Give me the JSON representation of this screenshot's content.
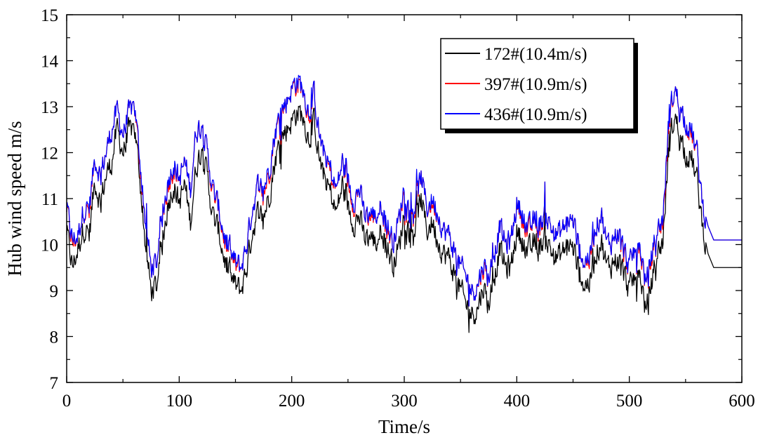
{
  "chart_data": {
    "type": "line",
    "title": "",
    "xlabel": "Time/s",
    "ylabel": "Hub wind speed m/s",
    "xlim": [
      0,
      600
    ],
    "ylim": [
      7,
      15
    ],
    "xticks": [
      0,
      100,
      200,
      300,
      400,
      500,
      600
    ],
    "yticks": [
      7,
      8,
      9,
      10,
      11,
      12,
      13,
      14,
      15
    ],
    "grid": false,
    "legend_position": "top-right",
    "sample_interval_s": 5,
    "noise_amplitude_ms": 0.45,
    "series": [
      {
        "name": "172#(10.4m/s)",
        "color": "#000000",
        "values": [
          10.3,
          9.5,
          9.9,
          10.4,
          10.2,
          11.4,
          10.9,
          11.5,
          11.8,
          12.5,
          12.0,
          12.4,
          12.6,
          11.5,
          10.0,
          9.0,
          9.1,
          10.0,
          10.9,
          11.3,
          10.9,
          11.3,
          10.5,
          11.7,
          12.1,
          11.5,
          10.6,
          10.3,
          9.7,
          9.3,
          9.1,
          9.0,
          9.5,
          10.3,
          10.7,
          10.6,
          11.1,
          11.8,
          12.3,
          12.5,
          12.7,
          12.9,
          12.8,
          12.3,
          12.7,
          11.8,
          11.4,
          11.1,
          10.7,
          11.3,
          10.8,
          10.5,
          10.6,
          10.1,
          10.2,
          10.0,
          10.4,
          9.9,
          9.6,
          9.9,
          10.7,
          10.2,
          10.4,
          11.0,
          10.3,
          10.5,
          10.1,
          9.8,
          9.7,
          9.3,
          9.0,
          8.7,
          8.5,
          8.6,
          9.1,
          8.7,
          9.3,
          9.9,
          9.5,
          9.5,
          10.3,
          10.1,
          9.8,
          10.0,
          9.9,
          10.2,
          9.9,
          9.7,
          9.8,
          10.0,
          9.9,
          9.5,
          9.1,
          9.2,
          9.8,
          10.1,
          9.5,
          9.6,
          9.7,
          9.4,
          9.0,
          9.3,
          9.3,
          8.5,
          9.2,
          9.8,
          10.1,
          12.1,
          12.8,
          12.4,
          12.0,
          11.9,
          11.4,
          10.4,
          9.8,
          9.5,
          9.5
        ]
      },
      {
        "name": "397#(10.9m/s)",
        "color": "#ff0000",
        "values": [
          10.8,
          10.0,
          10.2,
          10.8,
          10.7,
          11.9,
          11.5,
          12.0,
          12.5,
          12.9,
          12.4,
          12.8,
          13.1,
          11.8,
          10.5,
          9.5,
          9.6,
          10.6,
          11.3,
          11.7,
          11.4,
          11.8,
          11.2,
          12.5,
          12.6,
          12.0,
          11.1,
          10.8,
          10.1,
          9.8,
          9.5,
          9.5,
          10.0,
          10.8,
          11.3,
          11.1,
          11.6,
          12.4,
          12.8,
          13.1,
          13.4,
          13.5,
          13.4,
          12.8,
          13.3,
          12.3,
          11.9,
          11.5,
          11.2,
          11.8,
          11.3,
          10.9,
          11.2,
          10.6,
          10.6,
          10.6,
          10.9,
          10.3,
          10.1,
          10.5,
          11.2,
          10.6,
          10.8,
          11.5,
          10.8,
          10.9,
          10.7,
          10.3,
          10.2,
          9.8,
          9.5,
          9.3,
          9.0,
          9.1,
          9.5,
          9.3,
          9.8,
          10.4,
          10.0,
          10.1,
          10.9,
          10.6,
          10.2,
          10.5,
          10.3,
          10.7,
          10.4,
          10.2,
          10.3,
          10.5,
          10.5,
          10.0,
          9.6,
          9.7,
          10.4,
          10.7,
          10.0,
          10.1,
          10.3,
          9.8,
          9.5,
          9.9,
          9.8,
          9.1,
          9.7,
          10.3,
          10.5,
          12.6,
          13.4,
          13.0,
          12.7,
          12.4,
          12.0,
          10.9,
          10.4,
          10.1,
          10.1
        ]
      },
      {
        "name": "436#(10.9m/s)",
        "color": "#0000ff",
        "values": [
          10.8,
          10.1,
          10.2,
          10.8,
          10.8,
          11.9,
          11.5,
          12.0,
          12.5,
          12.9,
          12.4,
          12.8,
          13.1,
          11.9,
          10.5,
          9.5,
          9.6,
          10.6,
          11.4,
          11.8,
          11.4,
          11.8,
          11.2,
          12.5,
          12.6,
          12.0,
          11.2,
          10.8,
          10.2,
          9.8,
          9.6,
          9.5,
          10.0,
          10.8,
          11.3,
          11.2,
          11.7,
          12.4,
          12.9,
          13.1,
          13.4,
          13.6,
          13.4,
          12.9,
          13.3,
          12.3,
          11.9,
          11.6,
          11.2,
          11.8,
          11.4,
          11.0,
          11.2,
          10.6,
          10.7,
          10.6,
          10.9,
          10.4,
          10.1,
          10.5,
          11.3,
          10.6,
          10.9,
          11.5,
          10.8,
          11.0,
          10.7,
          10.3,
          10.2,
          9.8,
          9.5,
          9.3,
          9.0,
          9.1,
          9.6,
          9.3,
          9.8,
          10.4,
          10.0,
          10.1,
          10.9,
          10.7,
          10.3,
          10.5,
          10.4,
          10.7,
          10.4,
          10.2,
          10.3,
          10.5,
          10.5,
          10.0,
          9.6,
          9.8,
          10.4,
          10.7,
          10.0,
          10.1,
          10.3,
          9.9,
          9.5,
          9.9,
          9.9,
          9.1,
          9.8,
          10.3,
          10.6,
          12.7,
          13.4,
          13.0,
          12.7,
          12.5,
          12.0,
          10.9,
          10.4,
          10.1,
          10.1
        ]
      }
    ]
  }
}
